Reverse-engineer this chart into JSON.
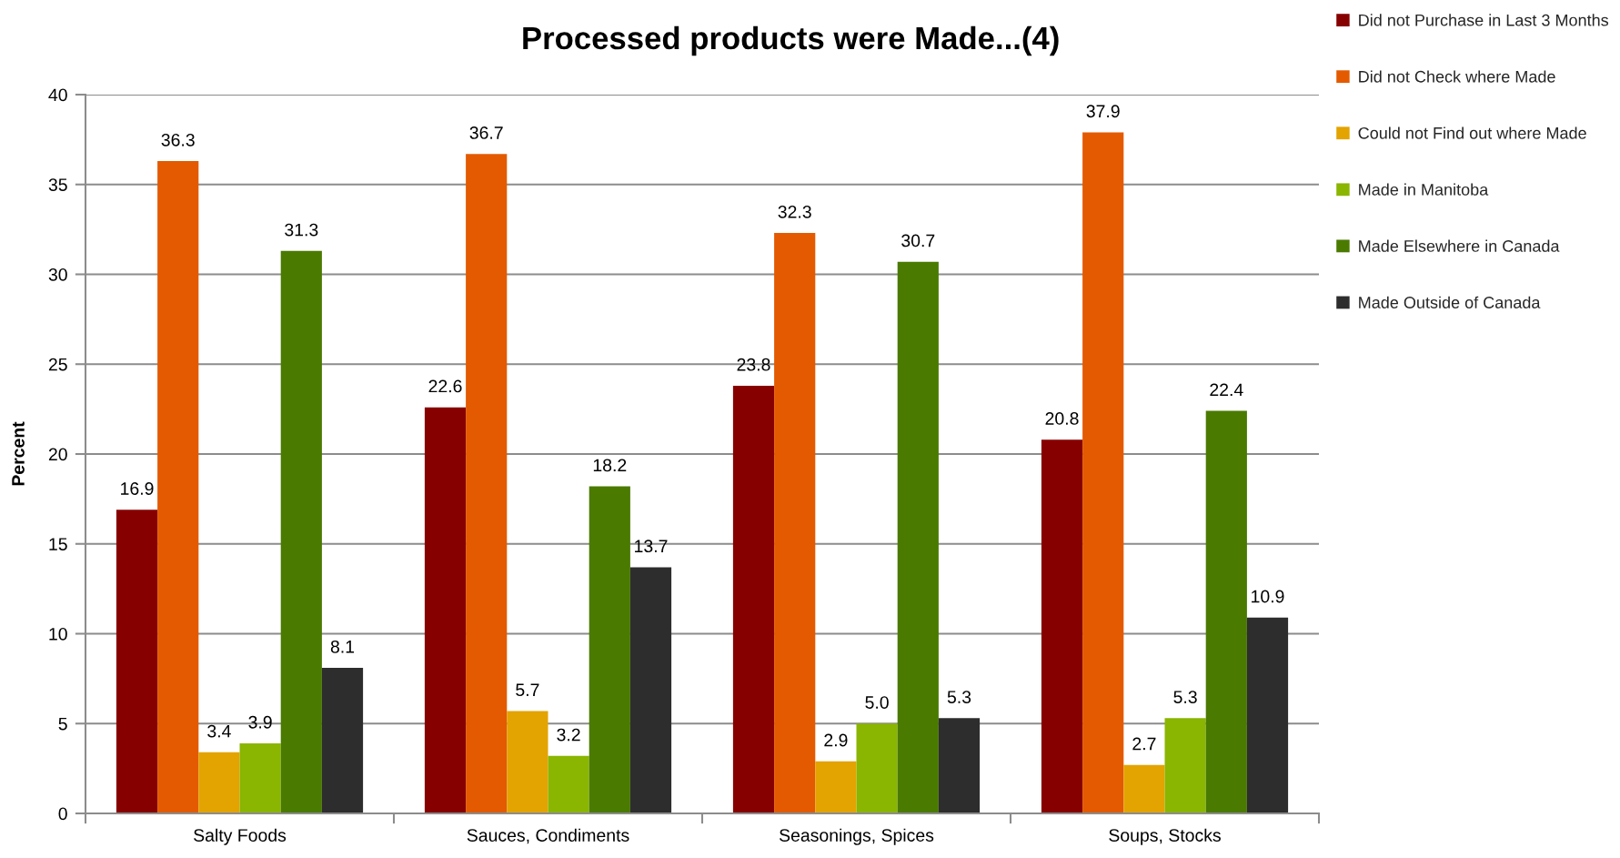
{
  "chart_data": {
    "type": "bar",
    "title": "Processed products were Made...(4)",
    "ylabel": "Percent",
    "categories": [
      "Salty Foods",
      "Sauces, Condiments",
      "Seasonings, Spices",
      "Soups, Stocks"
    ],
    "series": [
      {
        "name": "Did not Purchase in Last 3 Months",
        "color": "#870000",
        "values": [
          16.9,
          22.6,
          23.8,
          20.8
        ],
        "value_labels": [
          "16.9",
          "22.6",
          "23.8",
          "20.8"
        ]
      },
      {
        "name": "Did not Check where Made",
        "color": "#e35a00",
        "values": [
          36.3,
          36.7,
          32.3,
          37.9
        ],
        "value_labels": [
          "36.3",
          "36.7",
          "32.3",
          "37.9"
        ]
      },
      {
        "name": "Could not Find out where Made",
        "color": "#e3a300",
        "values": [
          3.4,
          5.7,
          2.9,
          2.7
        ],
        "value_labels": [
          "3.4",
          "5.7",
          "2.9",
          "2.7"
        ]
      },
      {
        "name": "Made in Manitoba",
        "color": "#8ab500",
        "values": [
          3.9,
          3.2,
          5.0,
          5.3
        ],
        "value_labels": [
          "3.9",
          "3.2",
          "5.0",
          "5.3"
        ]
      },
      {
        "name": "Made Elsewhere in Canada",
        "color": "#4a7a00",
        "values": [
          31.3,
          18.2,
          30.7,
          22.4
        ],
        "value_labels": [
          "31.3",
          "18.2",
          "30.7",
          "22.4"
        ]
      },
      {
        "name": "Made Outside of Canada",
        "color": "#2d2d2d",
        "values": [
          8.1,
          13.7,
          5.3,
          10.9
        ],
        "value_labels": [
          "8.1",
          "13.7",
          "5.3",
          "10.9"
        ]
      }
    ],
    "ylim": [
      0,
      40
    ],
    "yticks": [
      0,
      5,
      10,
      15,
      20,
      25,
      30,
      35,
      40
    ],
    "grid": "y",
    "legend": "right"
  }
}
